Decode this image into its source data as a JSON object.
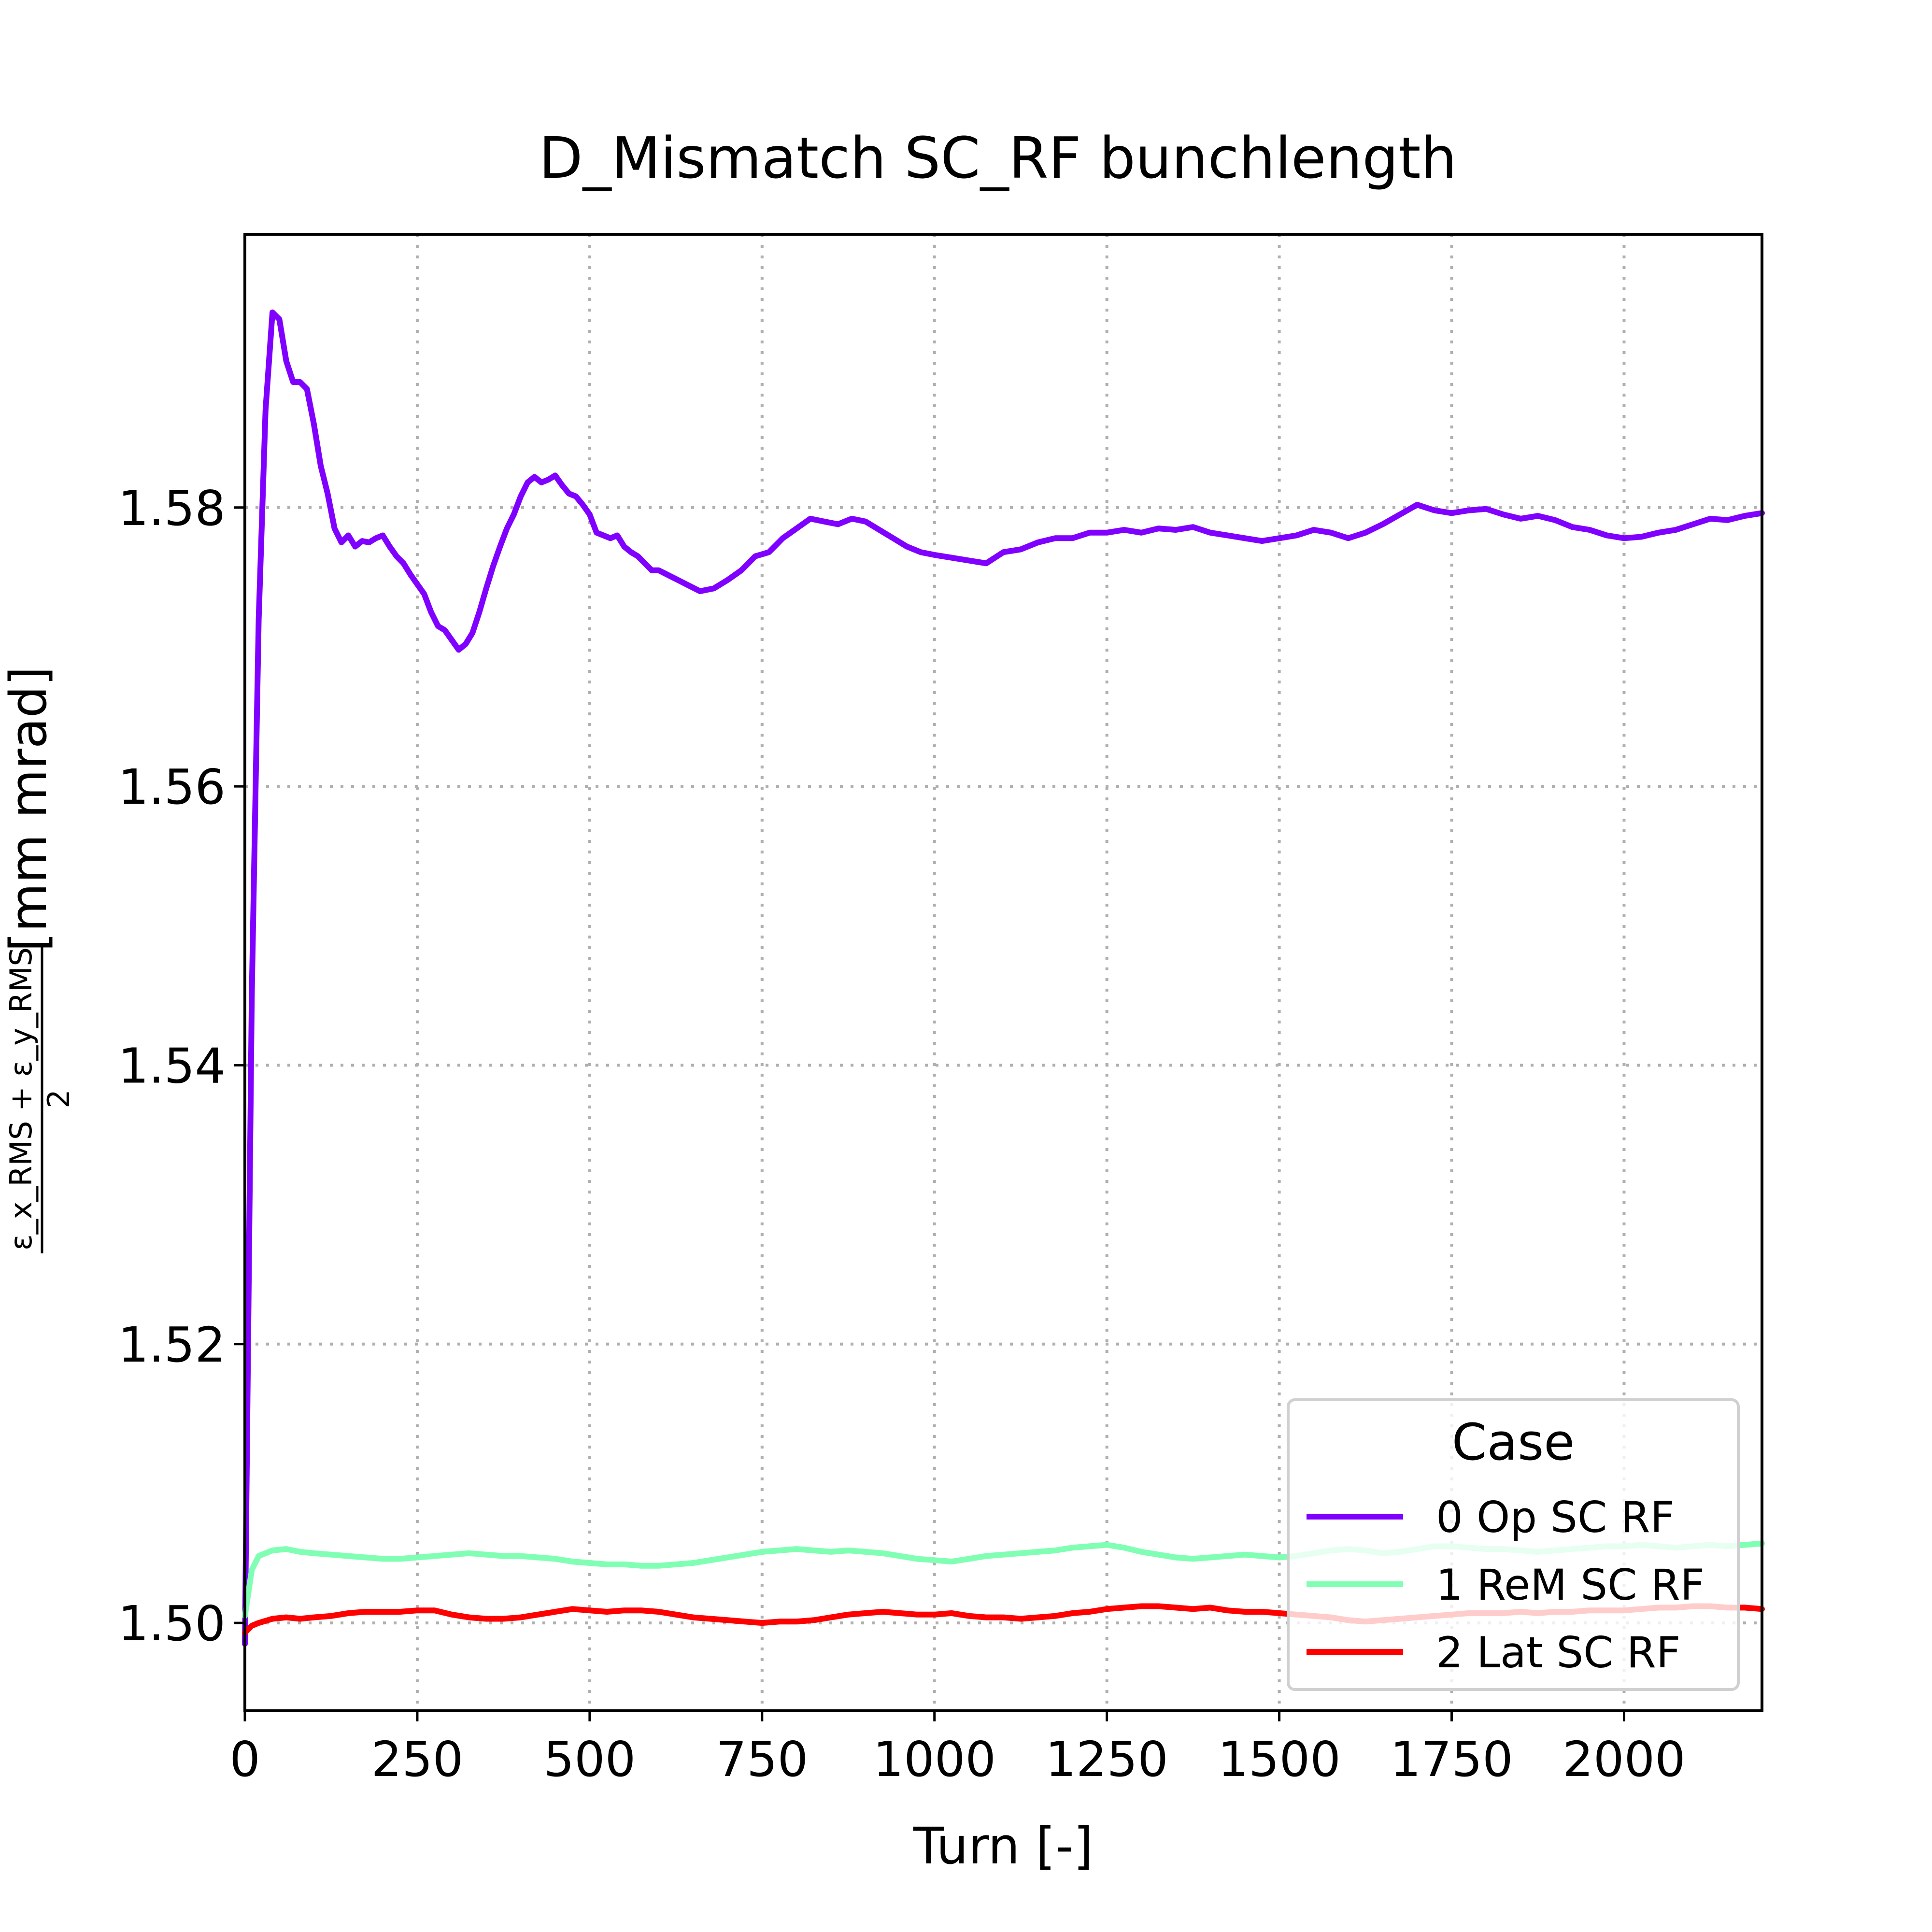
{
  "chart_data": {
    "type": "line",
    "title": "D_Mismatch SC_RF bunchlength",
    "xlabel": "Turn [-]",
    "ylabel": {
      "numerator": "ε_x_RMS + ε_y_RMS",
      "denominator": "2",
      "unit": "[mm mrad]"
    },
    "xlim": [
      0,
      2200
    ],
    "ylim": [
      1.4937,
      1.5996
    ],
    "xticks": [
      0,
      250,
      500,
      750,
      1000,
      1250,
      1500,
      1750,
      2000
    ],
    "xtick_labels": [
      "0",
      "250",
      "500",
      "750",
      "1000",
      "1250",
      "1500",
      "1750",
      "2000"
    ],
    "yticks": [
      1.5,
      1.52,
      1.54,
      1.56,
      1.58
    ],
    "ytick_labels": [
      "1.50",
      "1.52",
      "1.54",
      "1.56",
      "1.58"
    ],
    "grid": true,
    "grid_style": "dotted",
    "legend": {
      "title": "Case",
      "position": "lower-right"
    },
    "series": [
      {
        "name": "0 Op SC RF",
        "color": "#8000ff",
        "x": [
          0,
          10,
          20,
          30,
          40,
          50,
          60,
          70,
          80,
          90,
          100,
          110,
          120,
          130,
          140,
          150,
          160,
          170,
          180,
          190,
          200,
          210,
          220,
          230,
          240,
          250,
          260,
          270,
          280,
          290,
          300,
          310,
          320,
          330,
          340,
          350,
          360,
          370,
          380,
          390,
          400,
          410,
          420,
          430,
          440,
          450,
          460,
          470,
          480,
          490,
          500,
          510,
          520,
          530,
          540,
          550,
          560,
          570,
          580,
          590,
          600,
          620,
          640,
          660,
          680,
          700,
          720,
          740,
          760,
          780,
          800,
          820,
          840,
          860,
          880,
          900,
          920,
          940,
          960,
          980,
          1000,
          1025,
          1050,
          1075,
          1100,
          1125,
          1150,
          1175,
          1200,
          1225,
          1250,
          1275,
          1300,
          1325,
          1350,
          1375,
          1400,
          1425,
          1450,
          1475,
          1500,
          1525,
          1550,
          1575,
          1600,
          1625,
          1650,
          1675,
          1700,
          1725,
          1750,
          1775,
          1800,
          1825,
          1850,
          1875,
          1900,
          1925,
          1950,
          1975,
          2000,
          2025,
          2050,
          2075,
          2100,
          2125,
          2150,
          2175,
          2200
        ],
        "y": [
          1.4985,
          1.545,
          1.572,
          1.587,
          1.594,
          1.5935,
          1.5905,
          1.589,
          1.589,
          1.5885,
          1.586,
          1.583,
          1.581,
          1.5785,
          1.5775,
          1.578,
          1.5772,
          1.5776,
          1.5775,
          1.5778,
          1.578,
          1.5772,
          1.5765,
          1.576,
          1.5752,
          1.5745,
          1.5738,
          1.5725,
          1.5715,
          1.5712,
          1.5705,
          1.5698,
          1.5702,
          1.571,
          1.5725,
          1.5742,
          1.5758,
          1.5772,
          1.5785,
          1.5795,
          1.5808,
          1.5818,
          1.5822,
          1.5818,
          1.582,
          1.5823,
          1.5816,
          1.581,
          1.5808,
          1.5802,
          1.5795,
          1.5782,
          1.578,
          1.5778,
          1.578,
          1.5772,
          1.5768,
          1.5765,
          1.576,
          1.5755,
          1.5755,
          1.575,
          1.5745,
          1.574,
          1.5742,
          1.5748,
          1.5755,
          1.5765,
          1.5768,
          1.5778,
          1.5785,
          1.5792,
          1.579,
          1.5788,
          1.5792,
          1.579,
          1.5784,
          1.5778,
          1.5772,
          1.5768,
          1.5766,
          1.5764,
          1.5762,
          1.576,
          1.5768,
          1.577,
          1.5775,
          1.5778,
          1.5778,
          1.5782,
          1.5782,
          1.5784,
          1.5782,
          1.5785,
          1.5784,
          1.5786,
          1.5782,
          1.578,
          1.5778,
          1.5776,
          1.5778,
          1.578,
          1.5784,
          1.5782,
          1.5778,
          1.5782,
          1.5788,
          1.5795,
          1.5802,
          1.5798,
          1.5796,
          1.5798,
          1.5799,
          1.5795,
          1.5792,
          1.5794,
          1.5791,
          1.5786,
          1.5784,
          1.578,
          1.5778,
          1.5779,
          1.5782,
          1.5784,
          1.5788,
          1.5792,
          1.5791,
          1.5794,
          1.5796
        ]
      },
      {
        "name": "1 ReM SC RF",
        "color": "#80ffb4",
        "x": [
          0,
          10,
          20,
          40,
          60,
          80,
          100,
          125,
          150,
          175,
          200,
          225,
          250,
          275,
          300,
          325,
          350,
          375,
          400,
          425,
          450,
          475,
          500,
          525,
          550,
          575,
          600,
          625,
          650,
          675,
          700,
          725,
          750,
          775,
          800,
          825,
          850,
          875,
          900,
          925,
          950,
          975,
          1000,
          1025,
          1050,
          1075,
          1100,
          1125,
          1150,
          1175,
          1200,
          1225,
          1250,
          1275,
          1300,
          1325,
          1350,
          1375,
          1400,
          1425,
          1450,
          1475,
          1500,
          1525,
          1550,
          1575,
          1600,
          1625,
          1650,
          1675,
          1700,
          1725,
          1750,
          1775,
          1800,
          1825,
          1850,
          1875,
          1900,
          1925,
          1950,
          1975,
          2000,
          2025,
          2050,
          2075,
          2100,
          2125,
          2150,
          2175,
          2200
        ],
        "y": [
          1.5005,
          1.5038,
          1.5048,
          1.5052,
          1.5053,
          1.5051,
          1.505,
          1.5049,
          1.5048,
          1.5047,
          1.5046,
          1.5046,
          1.5047,
          1.5048,
          1.5049,
          1.505,
          1.5049,
          1.5048,
          1.5048,
          1.5047,
          1.5046,
          1.5044,
          1.5043,
          1.5042,
          1.5042,
          1.5041,
          1.5041,
          1.5042,
          1.5043,
          1.5045,
          1.5047,
          1.5049,
          1.5051,
          1.5052,
          1.5053,
          1.5052,
          1.5051,
          1.5052,
          1.5051,
          1.505,
          1.5048,
          1.5046,
          1.5045,
          1.5044,
          1.5046,
          1.5048,
          1.5049,
          1.505,
          1.5051,
          1.5052,
          1.5054,
          1.5055,
          1.5056,
          1.5054,
          1.5051,
          1.5049,
          1.5047,
          1.5046,
          1.5047,
          1.5048,
          1.5049,
          1.5048,
          1.5047,
          1.5048,
          1.505,
          1.5052,
          1.5053,
          1.5052,
          1.505,
          1.5051,
          1.5053,
          1.5055,
          1.5055,
          1.5054,
          1.5053,
          1.5053,
          1.5052,
          1.5051,
          1.5052,
          1.5053,
          1.5054,
          1.5055,
          1.5055,
          1.5056,
          1.5055,
          1.5054,
          1.5055,
          1.5056,
          1.5055,
          1.5056,
          1.5057
        ]
      },
      {
        "name": "2 Lat SC RF",
        "color": "#ff0000",
        "x": [
          0,
          10,
          20,
          40,
          60,
          80,
          100,
          125,
          150,
          175,
          200,
          225,
          250,
          275,
          300,
          325,
          350,
          375,
          400,
          425,
          450,
          475,
          500,
          525,
          550,
          575,
          600,
          625,
          650,
          675,
          700,
          725,
          750,
          775,
          800,
          825,
          850,
          875,
          900,
          925,
          950,
          975,
          1000,
          1025,
          1050,
          1075,
          1100,
          1125,
          1150,
          1175,
          1200,
          1225,
          1250,
          1275,
          1300,
          1325,
          1350,
          1375,
          1400,
          1425,
          1450,
          1475,
          1500,
          1525,
          1550,
          1575,
          1600,
          1625,
          1650,
          1675,
          1700,
          1725,
          1750,
          1775,
          1800,
          1825,
          1850,
          1875,
          1900,
          1925,
          1950,
          1975,
          2000,
          2025,
          2050,
          2075,
          2100,
          2125,
          2150,
          2175,
          2200
        ],
        "y": [
          1.4993,
          1.4998,
          1.5,
          1.5003,
          1.5004,
          1.5003,
          1.5004,
          1.5005,
          1.5007,
          1.5008,
          1.5008,
          1.5008,
          1.5009,
          1.5009,
          1.5006,
          1.5004,
          1.5003,
          1.5003,
          1.5004,
          1.5006,
          1.5008,
          1.501,
          1.5009,
          1.5008,
          1.5009,
          1.5009,
          1.5008,
          1.5006,
          1.5004,
          1.5003,
          1.5002,
          1.5001,
          1.5,
          1.5001,
          1.5001,
          1.5002,
          1.5004,
          1.5006,
          1.5007,
          1.5008,
          1.5007,
          1.5006,
          1.5006,
          1.5007,
          1.5005,
          1.5004,
          1.5004,
          1.5003,
          1.5004,
          1.5005,
          1.5007,
          1.5008,
          1.501,
          1.5011,
          1.5012,
          1.5012,
          1.5011,
          1.501,
          1.5011,
          1.5009,
          1.5008,
          1.5008,
          1.5007,
          1.5006,
          1.5005,
          1.5004,
          1.5002,
          1.5001,
          1.5002,
          1.5003,
          1.5004,
          1.5005,
          1.5006,
          1.5007,
          1.5007,
          1.5007,
          1.5008,
          1.5007,
          1.5008,
          1.5008,
          1.5009,
          1.5009,
          1.5009,
          1.501,
          1.5011,
          1.5011,
          1.5012,
          1.5012,
          1.5011,
          1.5011,
          1.501
        ]
      }
    ]
  }
}
